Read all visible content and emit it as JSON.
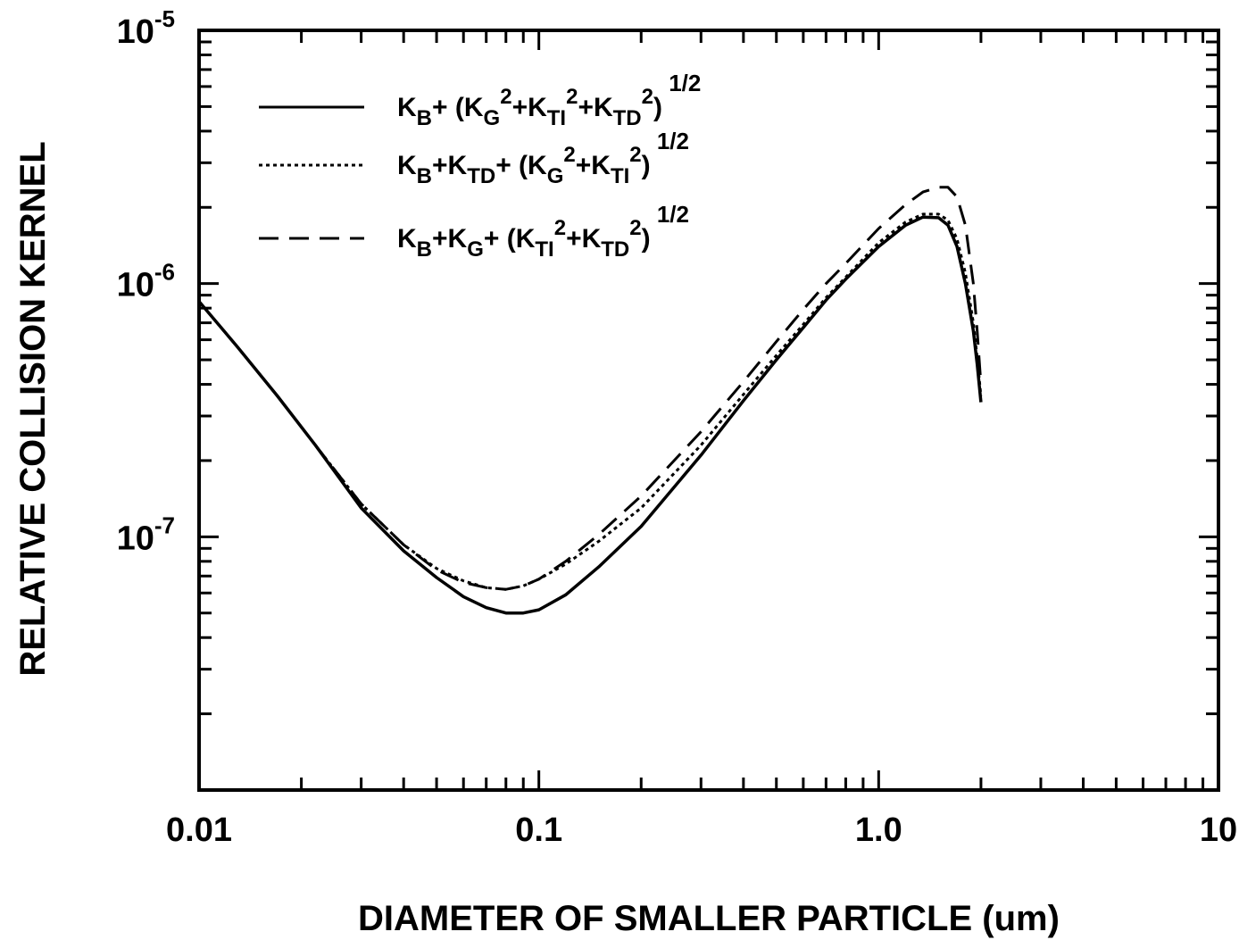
{
  "chart_data": {
    "type": "line",
    "title": "",
    "xlabel": "DIAMETER OF  SMALLER PARTICLE (um)",
    "ylabel": "RELATIVE  COLLISION  KERNEL",
    "xscale": "log",
    "yscale": "log",
    "xlim": [
      0.01,
      10
    ],
    "ylim": [
      1e-08,
      1e-05
    ],
    "grid": false,
    "legend_position": "top-left",
    "x_tick_labels": [
      {
        "value": 0.01,
        "label": "0.01"
      },
      {
        "value": 0.1,
        "label": "0.1"
      },
      {
        "value": 1.0,
        "label": "1.0"
      },
      {
        "value": 10,
        "label": "10"
      }
    ],
    "y_tick_labels": [
      {
        "value": 1e-05,
        "base": "10",
        "exp": "-5"
      },
      {
        "value": 1e-06,
        "base": "10",
        "exp": "-6"
      },
      {
        "value": 1e-07,
        "base": "10",
        "exp": "-7"
      }
    ],
    "series": [
      {
        "name": "KB+(KG²+KTI²+KTD²)^1/2",
        "legend": {
          "parts": [
            [
              "K",
              ""
            ],
            [
              "B",
              "sub"
            ],
            [
              "+ (K",
              ""
            ],
            [
              "G",
              "sub"
            ],
            [
              "2",
              "sup"
            ],
            [
              "+K",
              ""
            ],
            [
              "TI",
              "sub"
            ],
            [
              "2",
              "sup"
            ],
            [
              "+K",
              ""
            ],
            [
              "TD",
              "sub"
            ],
            [
              "2",
              "sup"
            ],
            [
              ")",
              ""
            ],
            [
              " 1/2",
              "supfar"
            ]
          ]
        },
        "style": "solid",
        "x": [
          0.01,
          0.013,
          0.017,
          0.022,
          0.03,
          0.04,
          0.05,
          0.06,
          0.07,
          0.08,
          0.09,
          0.1,
          0.12,
          0.15,
          0.2,
          0.3,
          0.4,
          0.5,
          0.6,
          0.7,
          0.8,
          1.0,
          1.2,
          1.35,
          1.5,
          1.6,
          1.7,
          1.8,
          1.9,
          1.95,
          2.0
        ],
        "y": [
          8.5e-07,
          5.6e-07,
          3.6e-07,
          2.3e-07,
          1.3e-07,
          8.8e-08,
          6.9e-08,
          5.8e-08,
          5.25e-08,
          5e-08,
          5e-08,
          5.15e-08,
          5.9e-08,
          7.6e-08,
          1.1e-07,
          2.1e-07,
          3.45e-07,
          5e-07,
          6.7e-07,
          8.6e-07,
          1.04e-06,
          1.4e-06,
          1.7e-06,
          1.83e-06,
          1.82e-06,
          1.7e-06,
          1.4e-06,
          1e-06,
          6.5e-07,
          4.8e-07,
          3.4e-07
        ]
      },
      {
        "name": "KB+KTD+(KG²+KTI²)^1/2",
        "legend": {
          "parts": [
            [
              "K",
              ""
            ],
            [
              "B",
              "sub"
            ],
            [
              "+K",
              ""
            ],
            [
              "TD",
              "sub"
            ],
            [
              "+ (K",
              ""
            ],
            [
              "G",
              "sub"
            ],
            [
              "2",
              "sup"
            ],
            [
              "+K",
              ""
            ],
            [
              "TI",
              "sub"
            ],
            [
              "2",
              "sup"
            ],
            [
              ")",
              ""
            ],
            [
              " 1/2",
              "supfar"
            ]
          ]
        },
        "style": "dotted",
        "x": [
          0.01,
          0.013,
          0.017,
          0.022,
          0.03,
          0.04,
          0.05,
          0.06,
          0.07,
          0.08,
          0.09,
          0.1,
          0.12,
          0.15,
          0.2,
          0.3,
          0.4,
          0.5,
          0.6,
          0.7,
          0.8,
          1.0,
          1.2,
          1.35,
          1.5,
          1.6,
          1.7,
          1.8,
          1.9,
          1.95,
          2.0
        ],
        "y": [
          8.5e-07,
          5.6e-07,
          3.6e-07,
          2.3e-07,
          1.35e-07,
          9.3e-08,
          7.5e-08,
          6.7e-08,
          6.3e-08,
          6.2e-08,
          6.4e-08,
          6.8e-08,
          7.8e-08,
          9.6e-08,
          1.3e-07,
          2.3e-07,
          3.65e-07,
          5.2e-07,
          6.9e-07,
          8.8e-07,
          1.06e-06,
          1.45e-06,
          1.75e-06,
          1.88e-06,
          1.88e-06,
          1.78e-06,
          1.5e-06,
          1.1e-06,
          7e-07,
          5.1e-07,
          3.6e-07
        ]
      },
      {
        "name": "KB+KG+(KTI²+KTD²)^1/2",
        "legend": {
          "parts": [
            [
              "K",
              ""
            ],
            [
              "B",
              "sub"
            ],
            [
              "+K",
              ""
            ],
            [
              "G",
              "sub"
            ],
            [
              "+ (K",
              ""
            ],
            [
              "TI",
              "sub"
            ],
            [
              "2",
              "sup"
            ],
            [
              "+K",
              ""
            ],
            [
              "TD",
              "sub"
            ],
            [
              "2",
              "sup"
            ],
            [
              ")",
              ""
            ],
            [
              " 1/2",
              "supfar"
            ]
          ]
        },
        "style": "dashed",
        "x": [
          0.01,
          0.013,
          0.017,
          0.022,
          0.03,
          0.04,
          0.05,
          0.06,
          0.07,
          0.08,
          0.09,
          0.1,
          0.12,
          0.15,
          0.2,
          0.3,
          0.4,
          0.5,
          0.6,
          0.7,
          0.8,
          1.0,
          1.2,
          1.35,
          1.5,
          1.6,
          1.7,
          1.8,
          1.9,
          1.95,
          2.0
        ],
        "y": [
          8.5e-07,
          5.6e-07,
          3.6e-07,
          2.3e-07,
          1.35e-07,
          9.3e-08,
          7.4e-08,
          6.6e-08,
          6.3e-08,
          6.2e-08,
          6.4e-08,
          6.8e-08,
          8e-08,
          1.02e-07,
          1.45e-07,
          2.6e-07,
          4.1e-07,
          5.9e-07,
          7.9e-07,
          1e-06,
          1.2e-06,
          1.65e-06,
          2.05e-06,
          2.3e-06,
          2.4e-06,
          2.4e-06,
          2.2e-06,
          1.7e-06,
          1e-06,
          6.5e-07,
          4e-07
        ]
      }
    ]
  }
}
